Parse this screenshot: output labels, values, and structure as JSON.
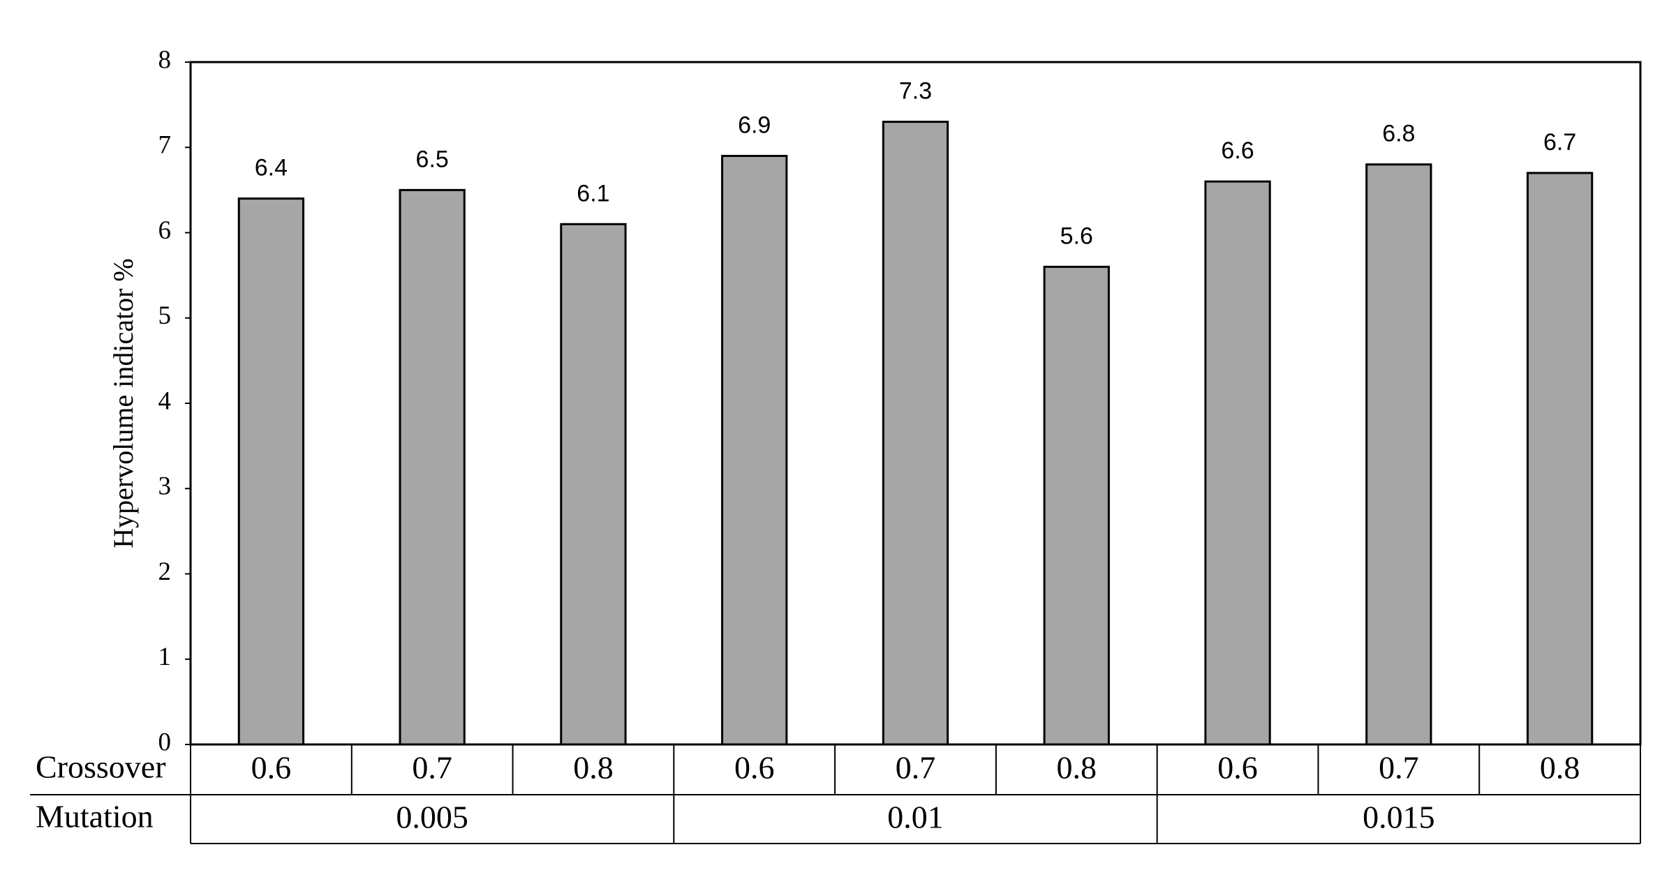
{
  "chart_data": {
    "type": "bar",
    "y_label": "Hypervolume indicator %",
    "category_row_label": "Crossover",
    "categories": [
      "0.6",
      "0.7",
      "0.8",
      "0.6",
      "0.7",
      "0.8",
      "0.6",
      "0.7",
      "0.8"
    ],
    "groups": {
      "label": "Mutation",
      "names": [
        "0.005",
        "0.01",
        "0.015"
      ]
    },
    "values": [
      6.4,
      6.5,
      6.1,
      6.9,
      7.3,
      5.6,
      6.6,
      6.8,
      6.7
    ],
    "color": "#a6a6a6",
    "ylim": [
      0,
      8
    ],
    "yticks": [
      0,
      1,
      2,
      3,
      4,
      5,
      6,
      7,
      8
    ],
    "grid": false
  }
}
